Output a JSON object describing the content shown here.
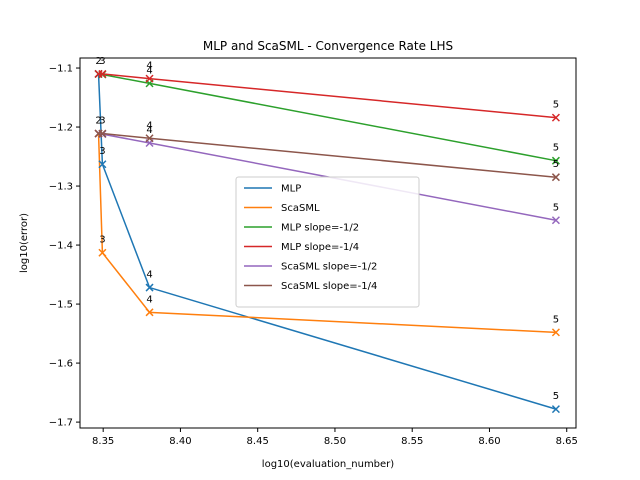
{
  "chart_data": {
    "type": "line",
    "title": "MLP and ScaSML - Convergence Rate LHS",
    "xlabel": "log10(evaluation_number)",
    "ylabel": "log10(error)",
    "xlim": [
      8.335,
      8.656
    ],
    "ylim": [
      -1.71,
      -1.083
    ],
    "xticks": [
      "8.35",
      "8.40",
      "8.45",
      "8.50",
      "8.55",
      "8.60",
      "8.65"
    ],
    "yticks": [
      "−1.1",
      "−1.2",
      "−1.3",
      "−1.4",
      "−1.5",
      "−1.6",
      "−1.7"
    ],
    "grid": false,
    "legend_position": "center",
    "series": [
      {
        "name": "MLP",
        "color": "#1f77b4",
        "x": [
          8.347,
          8.3495,
          8.38,
          8.643
        ],
        "y": [
          -1.11,
          -1.263,
          -1.472,
          -1.678
        ],
        "labels": [
          "2",
          "3",
          "4",
          "5"
        ],
        "marker": "x"
      },
      {
        "name": "ScaSML",
        "color": "#ff7f0e",
        "x": [
          8.347,
          8.3495,
          8.38,
          8.643
        ],
        "y": [
          -1.211,
          -1.413,
          -1.514,
          -1.548
        ],
        "labels": [
          "2",
          "3",
          "4",
          "5"
        ],
        "marker": "x"
      },
      {
        "name": "MLP slope=-1/2",
        "color": "#2ca02c",
        "x": [
          8.347,
          8.3495,
          8.38,
          8.643
        ],
        "y": [
          -1.11,
          -1.111,
          -1.126,
          -1.257
        ],
        "labels": [
          "",
          "",
          "",
          ""
        ],
        "marker": "x"
      },
      {
        "name": "MLP slope=-1/4",
        "color": "#d62728",
        "x": [
          8.347,
          8.3495,
          8.38,
          8.643
        ],
        "y": [
          -1.11,
          -1.11,
          -1.118,
          -1.184
        ],
        "labels": [
          "",
          "",
          "",
          ""
        ],
        "marker": "x"
      },
      {
        "name": "ScaSML slope=-1/2",
        "color": "#9467bd",
        "x": [
          8.347,
          8.3495,
          8.38,
          8.643
        ],
        "y": [
          -1.211,
          -1.212,
          -1.227,
          -1.358
        ],
        "labels": [
          "",
          "",
          "",
          ""
        ],
        "marker": "x"
      },
      {
        "name": "ScaSML slope=-1/4",
        "color": "#8c564b",
        "x": [
          8.347,
          8.3495,
          8.38,
          8.643
        ],
        "y": [
          -1.211,
          -1.211,
          -1.219,
          -1.285
        ],
        "labels": [
          "",
          "",
          "",
          ""
        ],
        "marker": "x"
      }
    ],
    "annotations": [
      {
        "text": "2",
        "x": 8.347,
        "y": -1.11
      },
      {
        "text": "3",
        "x": 8.3495,
        "y": -1.11
      },
      {
        "text": "4",
        "x": 8.38,
        "y": -1.118
      },
      {
        "text": "4",
        "x": 8.38,
        "y": -1.126
      },
      {
        "text": "5",
        "x": 8.643,
        "y": -1.184
      },
      {
        "text": "2",
        "x": 8.347,
        "y": -1.211
      },
      {
        "text": "3",
        "x": 8.3495,
        "y": -1.211
      },
      {
        "text": "3",
        "x": 8.3495,
        "y": -1.263
      },
      {
        "text": "4",
        "x": 8.38,
        "y": -1.219
      },
      {
        "text": "4",
        "x": 8.38,
        "y": -1.227
      },
      {
        "text": "5",
        "x": 8.643,
        "y": -1.257
      },
      {
        "text": "5",
        "x": 8.643,
        "y": -1.285
      },
      {
        "text": "5",
        "x": 8.643,
        "y": -1.358
      },
      {
        "text": "3",
        "x": 8.3495,
        "y": -1.413
      },
      {
        "text": "4",
        "x": 8.38,
        "y": -1.472
      },
      {
        "text": "4",
        "x": 8.38,
        "y": -1.514
      },
      {
        "text": "5",
        "x": 8.643,
        "y": -1.548
      },
      {
        "text": "5",
        "x": 8.643,
        "y": -1.678
      }
    ]
  }
}
